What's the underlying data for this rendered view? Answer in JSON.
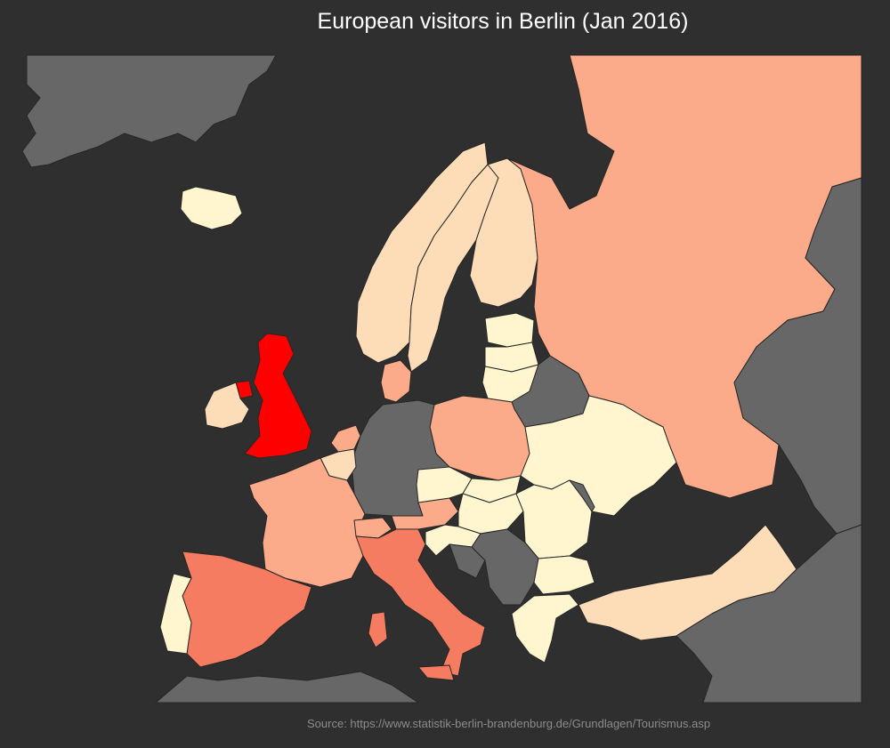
{
  "title": "European visitors in Berlin (Jan 2016)",
  "source": "Source: https://www.statistik-berlin-brandenburg.de/Grundlagen/Tourismus.asp",
  "colors": {
    "background": "#2f2f2f",
    "no_data": "#676767",
    "very_low": "#fff6d0",
    "low": "#fddcb8",
    "medium": "#fbab8a",
    "high": "#f57c60",
    "highest": "#ff0000"
  },
  "regions": [
    {
      "name": "greenland",
      "level": "no_data"
    },
    {
      "name": "iceland",
      "level": "very_low"
    },
    {
      "name": "norway",
      "level": "low"
    },
    {
      "name": "sweden",
      "level": "low"
    },
    {
      "name": "finland",
      "level": "low"
    },
    {
      "name": "russia",
      "level": "medium"
    },
    {
      "name": "estonia",
      "level": "very_low"
    },
    {
      "name": "latvia",
      "level": "very_low"
    },
    {
      "name": "lithuania",
      "level": "very_low"
    },
    {
      "name": "belarus",
      "level": "no_data"
    },
    {
      "name": "ukraine",
      "level": "very_low"
    },
    {
      "name": "kazakhstan",
      "level": "no_data"
    },
    {
      "name": "poland",
      "level": "medium"
    },
    {
      "name": "germany",
      "level": "no_data"
    },
    {
      "name": "denmark",
      "level": "medium"
    },
    {
      "name": "netherlands",
      "level": "medium"
    },
    {
      "name": "belgium",
      "level": "low"
    },
    {
      "name": "united-kingdom",
      "level": "highest"
    },
    {
      "name": "ireland",
      "level": "low"
    },
    {
      "name": "france",
      "level": "medium"
    },
    {
      "name": "spain",
      "level": "high"
    },
    {
      "name": "portugal",
      "level": "very_low"
    },
    {
      "name": "switzerland",
      "level": "medium"
    },
    {
      "name": "italy",
      "level": "high"
    },
    {
      "name": "austria",
      "level": "medium"
    },
    {
      "name": "czechia",
      "level": "very_low"
    },
    {
      "name": "slovakia",
      "level": "very_low"
    },
    {
      "name": "hungary",
      "level": "very_low"
    },
    {
      "name": "romania",
      "level": "very_low"
    },
    {
      "name": "moldova",
      "level": "no_data"
    },
    {
      "name": "bulgaria",
      "level": "very_low"
    },
    {
      "name": "serbia",
      "level": "no_data"
    },
    {
      "name": "croatia",
      "level": "very_low"
    },
    {
      "name": "bosnia",
      "level": "no_data"
    },
    {
      "name": "greece",
      "level": "very_low"
    },
    {
      "name": "turkey",
      "level": "low"
    },
    {
      "name": "north-africa",
      "level": "no_data"
    },
    {
      "name": "middle-east",
      "level": "no_data"
    }
  ]
}
